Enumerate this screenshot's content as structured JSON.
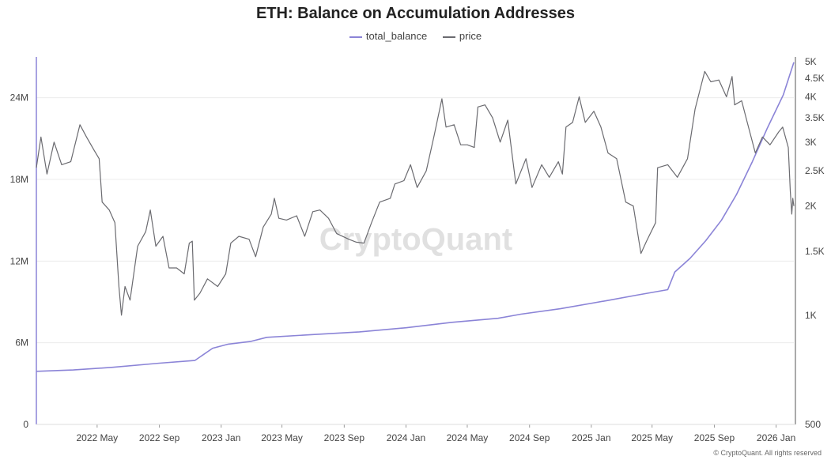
{
  "chart_data": {
    "type": "line",
    "title": "ETH: Balance on Accumulation Addresses",
    "watermark": "CryptoQuant",
    "footer": "© CryptoQuant. All rights reserved",
    "legend_position": "top-center",
    "grid": true,
    "x_axis": {
      "range": [
        "2022-01-01",
        "2026-02-05"
      ],
      "ticks": [
        {
          "label": "2022 May",
          "date": "2022-05-01"
        },
        {
          "label": "2022 Sep",
          "date": "2022-09-01"
        },
        {
          "label": "2023 Jan",
          "date": "2023-01-01"
        },
        {
          "label": "2023 May",
          "date": "2023-05-01"
        },
        {
          "label": "2023 Sep",
          "date": "2023-09-01"
        },
        {
          "label": "2024 Jan",
          "date": "2024-01-01"
        },
        {
          "label": "2024 May",
          "date": "2024-05-01"
        },
        {
          "label": "2024 Sep",
          "date": "2024-09-01"
        },
        {
          "label": "2025 Jan",
          "date": "2025-01-01"
        },
        {
          "label": "2025 May",
          "date": "2025-05-01"
        },
        {
          "label": "2025 Sep",
          "date": "2025-09-01"
        },
        {
          "label": "2026 Jan",
          "date": "2026-01-01"
        }
      ]
    },
    "y_left": {
      "scale": "linear",
      "range": [
        0,
        27000000
      ],
      "ticks": [
        {
          "label": "0",
          "value": 0
        },
        {
          "label": "6M",
          "value": 6000000
        },
        {
          "label": "12M",
          "value": 12000000
        },
        {
          "label": "18M",
          "value": 18000000
        },
        {
          "label": "24M",
          "value": 24000000
        }
      ]
    },
    "y_right": {
      "scale": "log",
      "range": [
        500,
        5000
      ],
      "ticks": [
        {
          "label": "500",
          "value": 500
        },
        {
          "label": "1K",
          "value": 1000
        },
        {
          "label": "1.5K",
          "value": 1500
        },
        {
          "label": "2K",
          "value": 2000
        },
        {
          "label": "2.5K",
          "value": 2500
        },
        {
          "label": "3K",
          "value": 3000
        },
        {
          "label": "3.5K",
          "value": 3500
        },
        {
          "label": "4K",
          "value": 4000
        },
        {
          "label": "4.5K",
          "value": 4500
        },
        {
          "label": "5K",
          "value": 5000
        }
      ]
    },
    "series": [
      {
        "name": "total_balance",
        "axis": "left",
        "color": "#8b84d7",
        "points": [
          [
            "2022-01-01",
            3900000
          ],
          [
            "2022-03-15",
            4000000
          ],
          [
            "2022-06-01",
            4200000
          ],
          [
            "2022-09-01",
            4500000
          ],
          [
            "2022-11-10",
            4700000
          ],
          [
            "2022-12-15",
            5600000
          ],
          [
            "2023-01-15",
            5900000
          ],
          [
            "2023-03-01",
            6100000
          ],
          [
            "2023-04-01",
            6400000
          ],
          [
            "2023-07-01",
            6600000
          ],
          [
            "2023-10-01",
            6800000
          ],
          [
            "2024-01-01",
            7100000
          ],
          [
            "2024-04-01",
            7500000
          ],
          [
            "2024-07-01",
            7800000
          ],
          [
            "2024-08-15",
            8100000
          ],
          [
            "2024-11-01",
            8500000
          ],
          [
            "2025-02-01",
            9100000
          ],
          [
            "2025-04-01",
            9500000
          ],
          [
            "2025-06-01",
            9900000
          ],
          [
            "2025-06-15",
            11200000
          ],
          [
            "2025-07-15",
            12200000
          ],
          [
            "2025-08-15",
            13500000
          ],
          [
            "2025-09-15",
            15000000
          ],
          [
            "2025-10-15",
            16900000
          ],
          [
            "2025-11-15",
            19300000
          ],
          [
            "2025-12-15",
            21800000
          ],
          [
            "2026-01-15",
            24200000
          ],
          [
            "2026-02-05",
            26600000
          ]
        ]
      },
      {
        "name": "price",
        "axis": "right",
        "color": "#6b6b70",
        "points": [
          [
            "2022-01-01",
            2550
          ],
          [
            "2022-01-10",
            3100
          ],
          [
            "2022-01-22",
            2450
          ],
          [
            "2022-02-05",
            3000
          ],
          [
            "2022-02-20",
            2600
          ],
          [
            "2022-03-10",
            2650
          ],
          [
            "2022-03-28",
            3350
          ],
          [
            "2022-04-10",
            3100
          ],
          [
            "2022-04-25",
            2850
          ],
          [
            "2022-05-05",
            2700
          ],
          [
            "2022-05-11",
            2050
          ],
          [
            "2022-05-25",
            1950
          ],
          [
            "2022-06-05",
            1800
          ],
          [
            "2022-06-13",
            1200
          ],
          [
            "2022-06-18",
            1000
          ],
          [
            "2022-06-25",
            1200
          ],
          [
            "2022-07-05",
            1100
          ],
          [
            "2022-07-20",
            1550
          ],
          [
            "2022-08-05",
            1700
          ],
          [
            "2022-08-14",
            1950
          ],
          [
            "2022-08-25",
            1550
          ],
          [
            "2022-09-08",
            1650
          ],
          [
            "2022-09-20",
            1350
          ],
          [
            "2022-10-05",
            1350
          ],
          [
            "2022-10-20",
            1300
          ],
          [
            "2022-10-30",
            1580
          ],
          [
            "2022-11-05",
            1600
          ],
          [
            "2022-11-09",
            1100
          ],
          [
            "2022-11-20",
            1150
          ],
          [
            "2022-12-05",
            1260
          ],
          [
            "2022-12-25",
            1200
          ],
          [
            "2023-01-10",
            1300
          ],
          [
            "2023-01-20",
            1580
          ],
          [
            "2023-02-05",
            1650
          ],
          [
            "2023-02-25",
            1620
          ],
          [
            "2023-03-10",
            1450
          ],
          [
            "2023-03-25",
            1750
          ],
          [
            "2023-04-10",
            1900
          ],
          [
            "2023-04-16",
            2100
          ],
          [
            "2023-04-25",
            1850
          ],
          [
            "2023-05-10",
            1830
          ],
          [
            "2023-05-30",
            1880
          ],
          [
            "2023-06-15",
            1650
          ],
          [
            "2023-07-01",
            1930
          ],
          [
            "2023-07-15",
            1950
          ],
          [
            "2023-08-01",
            1850
          ],
          [
            "2023-08-17",
            1680
          ],
          [
            "2023-09-10",
            1620
          ],
          [
            "2023-09-25",
            1590
          ],
          [
            "2023-10-10",
            1580
          ],
          [
            "2023-10-25",
            1800
          ],
          [
            "2023-11-10",
            2050
          ],
          [
            "2023-12-01",
            2100
          ],
          [
            "2023-12-10",
            2300
          ],
          [
            "2023-12-28",
            2350
          ],
          [
            "2024-01-10",
            2600
          ],
          [
            "2024-01-23",
            2250
          ],
          [
            "2024-02-10",
            2500
          ],
          [
            "2024-02-25",
            3100
          ],
          [
            "2024-03-12",
            3950
          ],
          [
            "2024-03-20",
            3300
          ],
          [
            "2024-04-05",
            3350
          ],
          [
            "2024-04-18",
            2950
          ],
          [
            "2024-05-01",
            2950
          ],
          [
            "2024-05-15",
            2900
          ],
          [
            "2024-05-22",
            3750
          ],
          [
            "2024-06-05",
            3800
          ],
          [
            "2024-06-20",
            3500
          ],
          [
            "2024-07-05",
            3000
          ],
          [
            "2024-07-20",
            3450
          ],
          [
            "2024-08-05",
            2300
          ],
          [
            "2024-08-25",
            2700
          ],
          [
            "2024-09-06",
            2250
          ],
          [
            "2024-09-25",
            2600
          ],
          [
            "2024-10-10",
            2400
          ],
          [
            "2024-10-28",
            2650
          ],
          [
            "2024-11-05",
            2450
          ],
          [
            "2024-11-12",
            3300
          ],
          [
            "2024-11-25",
            3400
          ],
          [
            "2024-12-08",
            4000
          ],
          [
            "2024-12-20",
            3400
          ],
          [
            "2025-01-06",
            3650
          ],
          [
            "2025-01-20",
            3300
          ],
          [
            "2025-02-03",
            2800
          ],
          [
            "2025-02-20",
            2700
          ],
          [
            "2025-03-10",
            2050
          ],
          [
            "2025-03-25",
            2000
          ],
          [
            "2025-04-09",
            1480
          ],
          [
            "2025-04-20",
            1600
          ],
          [
            "2025-05-08",
            1800
          ],
          [
            "2025-05-12",
            2550
          ],
          [
            "2025-06-01",
            2600
          ],
          [
            "2025-06-20",
            2400
          ],
          [
            "2025-07-10",
            2700
          ],
          [
            "2025-07-25",
            3700
          ],
          [
            "2025-08-13",
            4700
          ],
          [
            "2025-08-25",
            4400
          ],
          [
            "2025-09-10",
            4450
          ],
          [
            "2025-09-25",
            4000
          ],
          [
            "2025-10-06",
            4550
          ],
          [
            "2025-10-11",
            3800
          ],
          [
            "2025-10-25",
            3900
          ],
          [
            "2025-11-05",
            3400
          ],
          [
            "2025-11-21",
            2800
          ],
          [
            "2025-12-05",
            3100
          ],
          [
            "2025-12-20",
            2950
          ],
          [
            "2026-01-06",
            3200
          ],
          [
            "2026-01-14",
            3300
          ],
          [
            "2026-01-25",
            2900
          ],
          [
            "2026-01-29",
            2200
          ],
          [
            "2026-02-01",
            1900
          ],
          [
            "2026-02-03",
            2100
          ],
          [
            "2026-02-05",
            2000
          ]
        ]
      }
    ]
  }
}
